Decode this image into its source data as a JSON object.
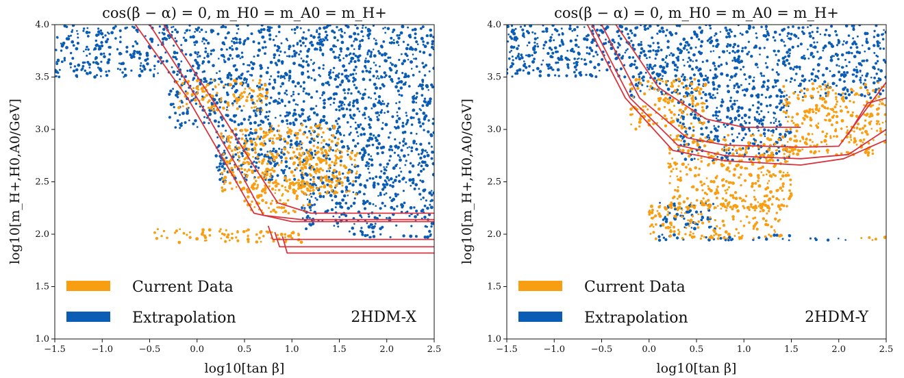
{
  "chart_data": [
    {
      "type": "scatter",
      "title": "cos(β − α) = 0,  m_H0 = m_A0 = m_H+",
      "xlabel": "log10[tan β]",
      "ylabel": "log10[m_H+,H0,A0/GeV]",
      "xlim": [
        -1.5,
        2.5
      ],
      "ylim": [
        1.0,
        4.0
      ],
      "x_ticks": [
        "−1.5",
        "−1.0",
        "−0.5",
        "0.0",
        "0.5",
        "1.0",
        "1.5",
        "2.0",
        "2.5"
      ],
      "y_ticks": [
        "1.0",
        "1.5",
        "2.0",
        "2.5",
        "3.0",
        "3.5",
        "4.0"
      ],
      "grid": false,
      "legend_position": "bottom-left",
      "model_label": "2HDM-X",
      "series": [
        {
          "name": "Current Data",
          "color": "#f89e13",
          "regions": [
            {
              "x": [
                -0.25,
                0.75
              ],
              "y": [
                3.18,
                3.48
              ]
            },
            {
              "x": [
                0.25,
                1.5
              ],
              "y": [
                2.4,
                3.05
              ]
            },
            {
              "x": [
                1.0,
                1.7
              ],
              "y": [
                2.38,
                2.8
              ]
            },
            {
              "x": [
                0.5,
                1.2
              ],
              "y": [
                2.2,
                2.5
              ]
            },
            {
              "x": [
                -0.45,
                1.1
              ],
              "y": [
                1.92,
                2.05
              ]
            }
          ]
        },
        {
          "name": "Extrapolation",
          "color": "#0b5cb5",
          "regions": [
            {
              "x": [
                -1.5,
                2.5
              ],
              "y": [
                3.5,
                4.0
              ]
            },
            {
              "x": [
                -0.3,
                2.5
              ],
              "y": [
                3.0,
                3.5
              ]
            },
            {
              "x": [
                0.2,
                2.5
              ],
              "y": [
                2.5,
                3.0
              ]
            },
            {
              "x": [
                1.1,
                2.5
              ],
              "y": [
                2.05,
                2.5
              ]
            },
            {
              "x": [
                1.6,
                2.5
              ],
              "y": [
                1.97,
                2.03
              ]
            }
          ]
        }
      ],
      "contour_color": "#d9323c",
      "contours": [
        {
          "x": [
            -0.65,
            -0.1,
            0.35,
            0.6,
            1.0,
            2.5
          ],
          "y": [
            4.0,
            3.3,
            2.6,
            2.2,
            2.12,
            2.12
          ]
        },
        {
          "x": [
            -0.5,
            0.0,
            0.45,
            0.7,
            1.1,
            2.5
          ],
          "y": [
            4.0,
            3.3,
            2.6,
            2.18,
            2.14,
            2.14
          ]
        },
        {
          "x": [
            -0.35,
            0.15,
            0.6,
            0.85,
            1.2,
            2.5
          ],
          "y": [
            4.0,
            3.3,
            2.65,
            2.3,
            2.2,
            2.2
          ]
        },
        {
          "x": [
            0.75,
            0.8,
            2.5
          ],
          "y": [
            2.08,
            1.95,
            1.95
          ]
        },
        {
          "x": [
            0.82,
            0.87,
            2.5
          ],
          "y": [
            2.02,
            1.88,
            1.88
          ]
        },
        {
          "x": [
            0.9,
            0.95,
            2.5
          ],
          "y": [
            1.98,
            1.82,
            1.82
          ]
        }
      ]
    },
    {
      "type": "scatter",
      "title": "cos(β − α) = 0,  m_H0 = m_A0 = m_H+",
      "xlabel": "log10[tan β]",
      "ylabel": "log10[m_H+,H0,A0/GeV]",
      "xlim": [
        -1.5,
        2.5
      ],
      "ylim": [
        1.0,
        4.0
      ],
      "x_ticks": [
        "−1.5",
        "−1.0",
        "−0.5",
        "0.0",
        "0.5",
        "1.0",
        "1.5",
        "2.0",
        "2.5"
      ],
      "y_ticks": [
        "1.0",
        "1.5",
        "2.0",
        "2.5",
        "3.0",
        "3.5",
        "4.0"
      ],
      "grid": false,
      "legend_position": "bottom-left",
      "model_label": "2HDM-Y",
      "series": [
        {
          "name": "Current Data",
          "color": "#f89e13",
          "regions": [
            {
              "x": [
                -0.2,
                0.6
              ],
              "y": [
                3.0,
                3.48
              ]
            },
            {
              "x": [
                0.2,
                1.5
              ],
              "y": [
                2.25,
                2.95
              ]
            },
            {
              "x": [
                0.0,
                1.4
              ],
              "y": [
                1.95,
                2.3
              ]
            },
            {
              "x": [
                1.4,
                2.5
              ],
              "y": [
                2.75,
                3.45
              ]
            },
            {
              "x": [
                2.2,
                2.5
              ],
              "y": [
                1.94,
                1.97
              ]
            }
          ]
        },
        {
          "name": "Extrapolation",
          "color": "#0b5cb5",
          "regions": [
            {
              "x": [
                -1.5,
                2.5
              ],
              "y": [
                3.5,
                4.0
              ]
            },
            {
              "x": [
                -0.2,
                2.5
              ],
              "y": [
                3.3,
                3.5
              ]
            },
            {
              "x": [
                0.3,
                1.5
              ],
              "y": [
                2.7,
                3.3
              ]
            },
            {
              "x": [
                0.1,
                0.7
              ],
              "y": [
                2.05,
                2.3
              ]
            },
            {
              "x": [
                0.1,
                1.5
              ],
              "y": [
                1.94,
                2.0
              ]
            },
            {
              "x": [
                1.7,
                2.1
              ],
              "y": [
                1.94,
                1.96
              ]
            }
          ]
        }
      ],
      "contour_color": "#d9323c",
      "contours": [
        {
          "x": [
            -0.35,
            0.1,
            0.6,
            1.0,
            1.6
          ],
          "y": [
            4.0,
            3.4,
            3.1,
            3.02,
            3.02
          ]
        },
        {
          "x": [
            -0.5,
            -0.1,
            0.4,
            0.8,
            1.6,
            2.0,
            2.5
          ],
          "y": [
            4.0,
            3.3,
            2.92,
            2.85,
            2.83,
            2.84,
            3.45
          ]
        },
        {
          "x": [
            -0.6,
            -0.2,
            0.3,
            0.8,
            1.6,
            2.1,
            2.5
          ],
          "y": [
            4.0,
            3.3,
            2.85,
            2.75,
            2.72,
            2.76,
            3.0
          ]
        },
        {
          "x": [
            -0.65,
            -0.25,
            0.25,
            0.8,
            1.6,
            2.05,
            2.5
          ],
          "y": [
            4.0,
            3.3,
            2.8,
            2.7,
            2.66,
            2.72,
            2.9
          ]
        },
        {
          "x": [
            2.1,
            2.3,
            2.5
          ],
          "y": [
            2.95,
            3.25,
            3.3
          ]
        }
      ]
    }
  ]
}
